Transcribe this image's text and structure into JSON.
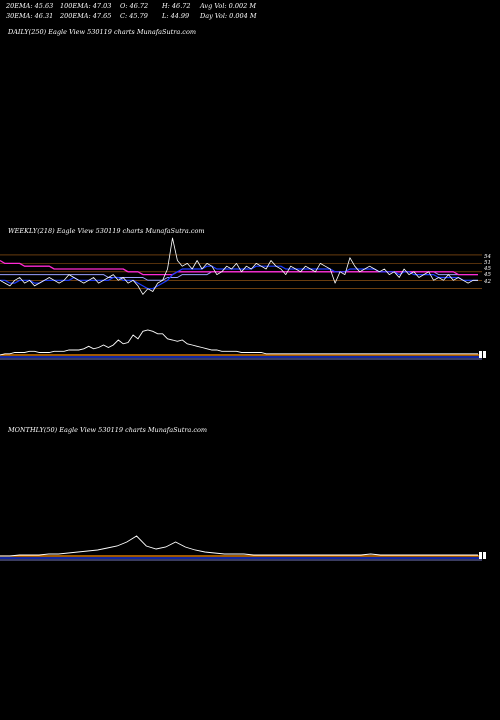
{
  "header": {
    "ema20": "20EMA: 45.63",
    "ema100": "100EMA: 47.03",
    "open": "O: 46.72",
    "high": "H: 46.72",
    "avg_vol": "Avg Vol: 0.002  M",
    "ema30": "30EMA: 46.31",
    "ema200": "200EMA: 47.65",
    "close": "C: 45.79",
    "low": "L: 44.99",
    "day_vol": "Day Vol: 0.004 M"
  },
  "panels": {
    "daily_title": "DAILY(250) Eagle  View  530119 charts MunafaSutra.com",
    "weekly_title": "WEEKLY(218) Eagle  View  530119 charts MunafaSutra.com",
    "monthly_title": "MONTHLY(50) Eagle  View  530119 charts MunafaSutra.com"
  },
  "colors": {
    "background": "#000000",
    "price": "#ffffff",
    "ema_short": "#1e3cff",
    "ema_long": "#ff2ad4",
    "ema_mid": "#9aa0ff",
    "grid": "#d27a1e",
    "volume_base": "#ff8c00"
  },
  "chart_data": [
    {
      "type": "line",
      "panel": "weekly",
      "y_ticks": [
        "54",
        "51",
        "45",
        "45",
        "42"
      ],
      "ylim": [
        38,
        60
      ],
      "series": [
        {
          "role": "price",
          "values": [
            45,
            44,
            43,
            45,
            46,
            44,
            45,
            43,
            44,
            45,
            46,
            45,
            44,
            45,
            47,
            46,
            45,
            44,
            45,
            46,
            44,
            45,
            46,
            47,
            45,
            46,
            44,
            45,
            43,
            40,
            42,
            41,
            44,
            45,
            49,
            60,
            52,
            50,
            51,
            49,
            52,
            49,
            51,
            50,
            47,
            48,
            50,
            49,
            51,
            48,
            50,
            49,
            51,
            50,
            49,
            52,
            50,
            49,
            47,
            50,
            49,
            48,
            50,
            49,
            48,
            51,
            50,
            49,
            44,
            48,
            47,
            53,
            50,
            48,
            49,
            50,
            49,
            48,
            49,
            47,
            48,
            46,
            49,
            47,
            48,
            46,
            47,
            48,
            45,
            46,
            45,
            47,
            45,
            46,
            45,
            44,
            45,
            45
          ]
        },
        {
          "role": "ema-short",
          "values": [
            45,
            45,
            44,
            44,
            45,
            45,
            45,
            44,
            44,
            45,
            45,
            45,
            45,
            45,
            45,
            46,
            45,
            45,
            45,
            45,
            45,
            45,
            45,
            46,
            46,
            45,
            45,
            45,
            44,
            43,
            42,
            42,
            43,
            44,
            45,
            47,
            48,
            49,
            49,
            49,
            49,
            49,
            50,
            50,
            49,
            49,
            49,
            49,
            49,
            49,
            49,
            49,
            50,
            50,
            50,
            50,
            50,
            50,
            49,
            49,
            49,
            49,
            49,
            49,
            49,
            49,
            49,
            49,
            48,
            48,
            48,
            49,
            49,
            49,
            49,
            49,
            49,
            48,
            48,
            48,
            48,
            47,
            48,
            48,
            47,
            47,
            47,
            47,
            47,
            46,
            46,
            46,
            46,
            46,
            45,
            45,
            45,
            45
          ]
        },
        {
          "role": "ema-long",
          "values": [
            52,
            51,
            51,
            51,
            51,
            50,
            50,
            50,
            50,
            50,
            50,
            49,
            49,
            49,
            49,
            49,
            49,
            49,
            49,
            49,
            49,
            49,
            49,
            49,
            49,
            49,
            48,
            48,
            48,
            47,
            47,
            47,
            47,
            47,
            47,
            47,
            48,
            48,
            48,
            48,
            48,
            48,
            48,
            48,
            48,
            48,
            48,
            48,
            48,
            48,
            48,
            48,
            48,
            48,
            48,
            48,
            48,
            48,
            48,
            48,
            48,
            48,
            48,
            48,
            48,
            48,
            48,
            48,
            48,
            48,
            48,
            48,
            48,
            48,
            48,
            48,
            48,
            48,
            48,
            48,
            48,
            48,
            48,
            48,
            48,
            48,
            48,
            48,
            48,
            48,
            48,
            48,
            48,
            47,
            47,
            47,
            47,
            47
          ]
        },
        {
          "role": "ema-mid",
          "values": [
            47,
            47,
            47,
            47,
            47,
            47,
            47,
            47,
            47,
            47,
            47,
            47,
            47,
            47,
            47,
            47,
            47,
            47,
            47,
            47,
            47,
            47,
            46,
            46,
            46,
            46,
            46,
            46,
            46,
            46,
            45,
            45,
            45,
            45,
            46,
            46,
            46,
            47,
            47,
            47,
            47,
            47,
            47,
            48,
            48,
            48,
            48,
            48,
            48,
            48,
            48,
            48,
            48,
            48,
            48,
            48,
            48,
            48,
            48,
            48,
            48,
            48,
            48,
            48,
            48,
            48,
            48,
            48,
            48,
            48,
            48,
            48,
            48,
            48,
            48,
            48,
            48,
            48,
            48,
            48,
            48,
            48,
            48,
            48,
            48,
            48,
            48,
            48,
            48,
            47,
            47,
            47,
            47,
            47,
            47,
            47,
            47,
            47
          ]
        }
      ]
    },
    {
      "type": "area",
      "panel": "weekly-volume",
      "series": [
        {
          "role": "volume",
          "values": [
            0,
            1,
            1,
            2,
            2,
            2,
            3,
            3,
            2,
            2,
            2,
            3,
            3,
            3,
            4,
            4,
            4,
            5,
            7,
            5,
            6,
            8,
            6,
            8,
            12,
            9,
            10,
            16,
            13,
            19,
            20,
            19,
            17,
            17,
            13,
            12,
            11,
            12,
            9,
            8,
            7,
            6,
            5,
            4,
            4,
            3,
            3,
            3,
            3,
            2,
            2,
            2,
            2,
            2,
            1,
            1,
            1,
            1,
            1,
            1,
            1,
            1,
            1,
            1,
            1,
            1,
            1,
            1,
            1,
            1,
            1,
            1,
            1,
            1,
            1,
            1,
            1,
            1,
            1,
            1,
            1,
            1,
            1,
            1,
            1,
            1,
            1,
            1,
            1,
            1,
            1,
            1,
            1,
            1,
            1,
            1,
            1,
            1
          ]
        }
      ]
    },
    {
      "type": "area",
      "panel": "monthly-volume",
      "series": [
        {
          "role": "volume",
          "values": [
            0,
            0,
            1,
            1,
            1,
            2,
            2,
            3,
            4,
            5,
            6,
            8,
            10,
            14,
            20,
            10,
            7,
            9,
            14,
            9,
            6,
            4,
            3,
            2,
            2,
            2,
            1,
            1,
            1,
            1,
            1,
            1,
            1,
            1,
            1,
            1,
            1,
            1,
            2,
            1,
            1,
            1,
            1,
            1,
            1,
            1,
            1,
            1,
            1,
            1
          ]
        }
      ]
    }
  ]
}
